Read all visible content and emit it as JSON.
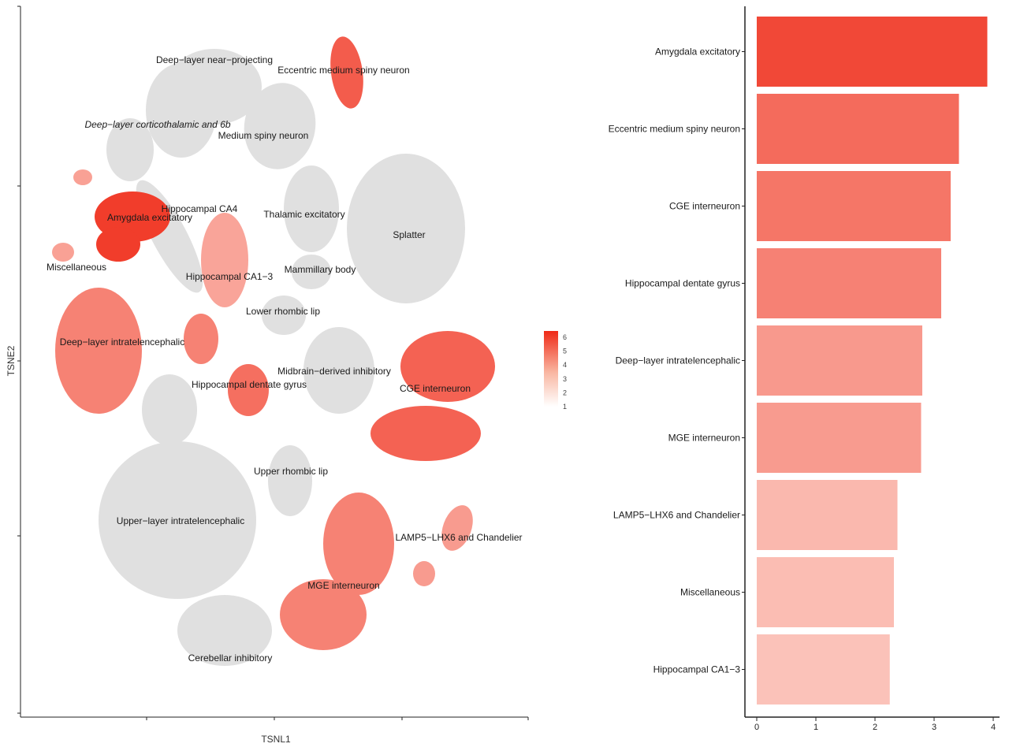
{
  "colors": {
    "grey": "#e0e0e0",
    "low": "#fff2ec",
    "high": "#ef2a17",
    "axis": "#222222"
  },
  "chart_data": [
    {
      "type": "scatter",
      "xlabel": "TSNL1",
      "ylabel": "TSNE2",
      "legend": {
        "position": "right",
        "min": 1,
        "max": 6,
        "ticks": [
          "6",
          "5",
          "4",
          "3",
          "2",
          "1"
        ]
      },
      "clusters": [
        {
          "label": "Deep−layer near−projecting",
          "value": null
        },
        {
          "label": "Eccentric medium spiny neuron",
          "value": 3.4
        },
        {
          "label": "Deep−layer corticothalamic and 6b",
          "value": null
        },
        {
          "label": "Medium spiny neuron",
          "value": null
        },
        {
          "label": "Hippocampal CA4",
          "value": null
        },
        {
          "label": "Amygdala excitatory",
          "value": 3.9
        },
        {
          "label": "Thalamic excitatory",
          "value": null
        },
        {
          "label": "Splatter",
          "value": null
        },
        {
          "label": "Miscellaneous",
          "value": 2.3
        },
        {
          "label": "Hippocampal CA1−3",
          "value": 2.25
        },
        {
          "label": "Mammillary body",
          "value": null
        },
        {
          "label": "Lower rhombic lip",
          "value": null
        },
        {
          "label": "Deep−layer intratelencephalic",
          "value": 2.8
        },
        {
          "label": "Midbrain−derived inhibitory",
          "value": null
        },
        {
          "label": "Hippocampal dentate gyrus",
          "value": 3.1
        },
        {
          "label": "CGE interneuron",
          "value": 3.3
        },
        {
          "label": "Upper rhombic lip",
          "value": null
        },
        {
          "label": "Upper−layer intratelencephalic",
          "value": null
        },
        {
          "label": "LAMP5−LHX6 and Chandelier",
          "value": 2.4
        },
        {
          "label": "MGE interneuron",
          "value": 2.8
        },
        {
          "label": "Cerebellar inhibitory",
          "value": null
        }
      ]
    },
    {
      "type": "bar",
      "orientation": "horizontal",
      "categories": [
        "Amygdala excitatory",
        "Eccentric medium spiny neuron",
        "CGE interneuron",
        "Hippocampal dentate gyrus",
        "Deep−layer intratelencephalic",
        "MGE interneuron",
        "LAMP5−LHX6 and Chandelier",
        "Miscellaneous",
        "Hippocampal CA1−3"
      ],
      "values": [
        3.9,
        3.42,
        3.28,
        3.12,
        2.8,
        2.78,
        2.38,
        2.32,
        2.25
      ],
      "xlim": [
        0,
        4
      ],
      "xticks": [
        "0",
        "1",
        "2",
        "3",
        "4"
      ],
      "grid": false
    }
  ]
}
